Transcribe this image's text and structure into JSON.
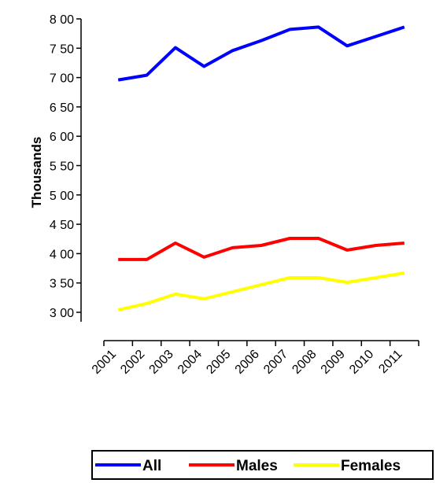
{
  "chart_data": {
    "type": "line",
    "title": "",
    "xlabel": "",
    "ylabel": "Thousands",
    "categories": [
      "2001",
      "2002",
      "2003",
      "2004",
      "2005",
      "2006",
      "2007",
      "2008",
      "2009",
      "2010",
      "2011"
    ],
    "series": [
      {
        "name": "All",
        "color": "#0000ff",
        "values": [
          696,
          704,
          751,
          719,
          746,
          763,
          782,
          786,
          754,
          770,
          786
        ]
      },
      {
        "name": "Males",
        "color": "#ff0000",
        "values": [
          390,
          390,
          418,
          394,
          410,
          414,
          426,
          426,
          406,
          414,
          418
        ]
      },
      {
        "name": "Females",
        "color": "#ffff00",
        "values": [
          304,
          315,
          331,
          323,
          335,
          347,
          359,
          359,
          351,
          359,
          367
        ]
      }
    ],
    "ylim": [
      300,
      800
    ],
    "yticks": [
      "3 00",
      "3 50",
      "4 00",
      "4 50",
      "5 00",
      "5 50",
      "6 00",
      "6 50",
      "7 00",
      "7 50",
      "8 00"
    ],
    "legend_position": "bottom",
    "grid": false
  }
}
